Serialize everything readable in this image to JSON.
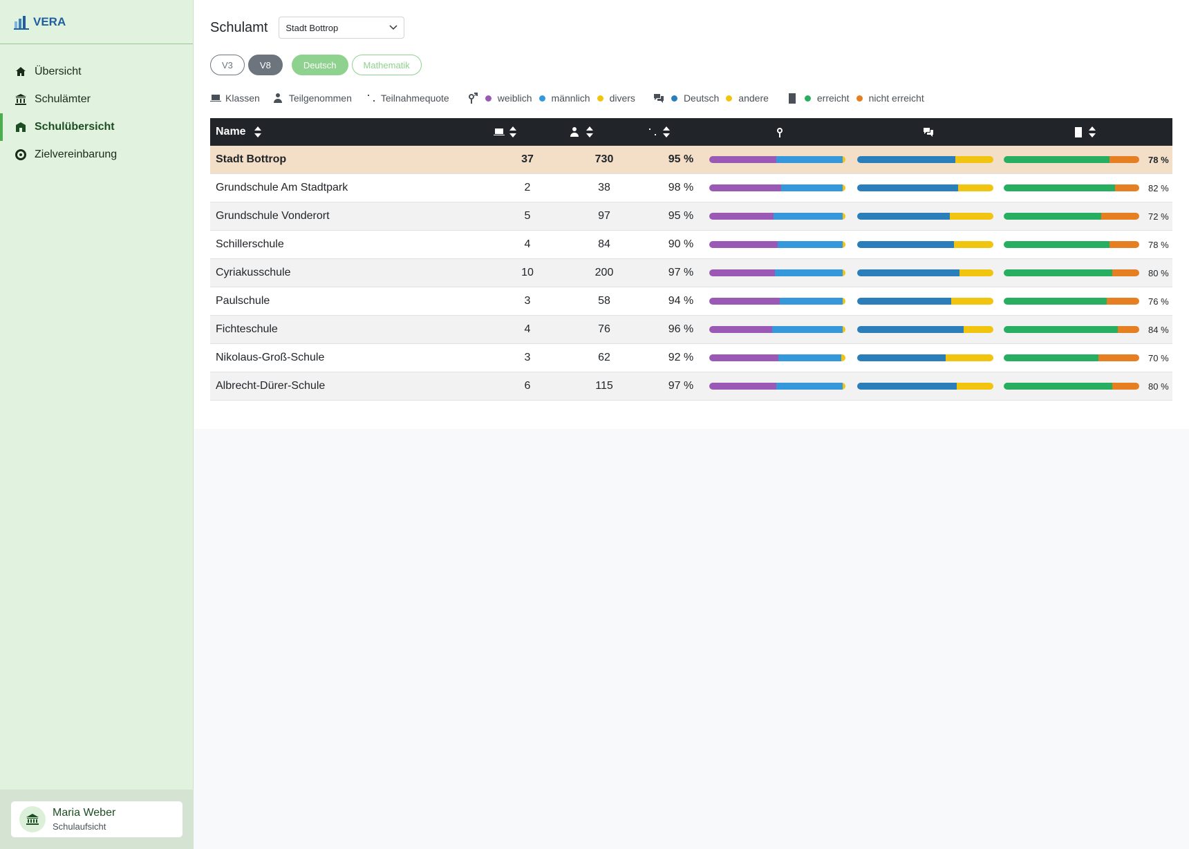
{
  "sidebar": {
    "brand": "VERA",
    "nav": [
      "Übersicht",
      "Schulämter",
      "Schulübersicht",
      "Zielvereinbarung"
    ],
    "user": {
      "name": "Maria Weber",
      "role": "Schulaufsicht"
    }
  },
  "header": {
    "label": "Schulamt",
    "select": "Stadt Bottrop",
    "pills": [
      "V3",
      "V8",
      "Deutsch",
      "Mathematik"
    ]
  },
  "legend": {
    "columns": [
      "Klassen",
      "Teilgenommen",
      "Teilnahmequote"
    ],
    "gender": [
      "weiblich",
      "männlich",
      "divers"
    ],
    "language": [
      "Deutsch",
      "andere"
    ],
    "result": [
      "erreicht",
      "nicht erreicht"
    ]
  },
  "table": {
    "name_header": "Name",
    "rows": [
      {
        "name": "Stadt Bottrop",
        "classes": 37,
        "participants": 730,
        "rate": "95 %",
        "gender": [
          49,
          49,
          2
        ],
        "language": [
          72,
          28
        ],
        "achieved": {
          "value": 78,
          "label": "78 %"
        }
      },
      {
        "name": "Grundschule Am Stadtpark",
        "classes": 2,
        "participants": 38,
        "rate": "98 %",
        "gender": [
          53,
          45,
          2
        ],
        "language": [
          74,
          26
        ],
        "achieved": {
          "value": 82,
          "label": "82 %"
        }
      },
      {
        "name": "Grundschule Vonderort",
        "classes": 5,
        "participants": 97,
        "rate": "95 %",
        "gender": [
          47,
          51,
          2
        ],
        "language": [
          68,
          32
        ],
        "achieved": {
          "value": 72,
          "label": "72 %"
        }
      },
      {
        "name": "Schillerschule",
        "classes": 4,
        "participants": 84,
        "rate": "90 %",
        "gender": [
          50,
          48,
          2
        ],
        "language": [
          71,
          29
        ],
        "achieved": {
          "value": 78,
          "label": "78 %"
        }
      },
      {
        "name": "Cyriakusschule",
        "classes": 10,
        "participants": 200,
        "rate": "97 %",
        "gender": [
          48,
          50,
          2
        ],
        "language": [
          75,
          25
        ],
        "achieved": {
          "value": 80,
          "label": "80 %"
        }
      },
      {
        "name": "Paulschule",
        "classes": 3,
        "participants": 58,
        "rate": "94 %",
        "gender": [
          52,
          46,
          2
        ],
        "language": [
          69,
          31
        ],
        "achieved": {
          "value": 76,
          "label": "76 %"
        }
      },
      {
        "name": "Fichteschule",
        "classes": 4,
        "participants": 76,
        "rate": "96 %",
        "gender": [
          46,
          52,
          2
        ],
        "language": [
          78,
          22
        ],
        "achieved": {
          "value": 84,
          "label": "84 %"
        }
      },
      {
        "name": "Nikolaus-Groß-Schule",
        "classes": 3,
        "participants": 62,
        "rate": "92 %",
        "gender": [
          51,
          46,
          3
        ],
        "language": [
          65,
          35
        ],
        "achieved": {
          "value": 70,
          "label": "70 %"
        }
      },
      {
        "name": "Albrecht-Dürer-Schule",
        "classes": 6,
        "participants": 115,
        "rate": "97 %",
        "gender": [
          49,
          49,
          2
        ],
        "language": [
          73,
          27
        ],
        "achieved": {
          "value": 80,
          "label": "80 %"
        }
      }
    ]
  }
}
